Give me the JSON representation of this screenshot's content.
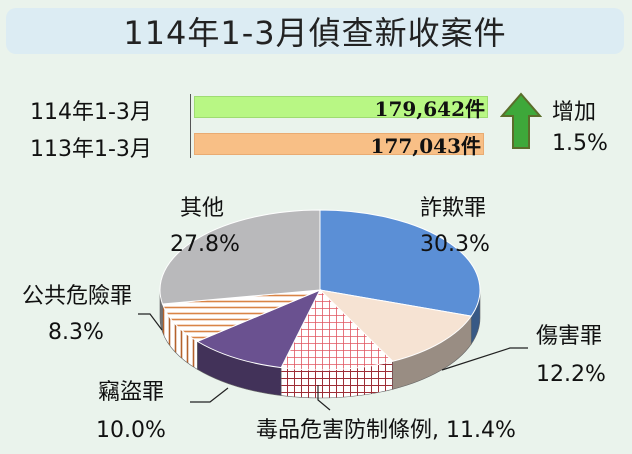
{
  "title": "114年1-3月偵查新收案件",
  "comparison": {
    "rows": [
      {
        "label": "114年1-3月",
        "value": 179642,
        "value_text": "179,642件",
        "color": "#b8f784"
      },
      {
        "label": "113年1-3月",
        "value": 177043,
        "value_text": "177,043件",
        "color": "#f8bf86"
      }
    ],
    "increase_label": "增加",
    "increase_value": "1.5%",
    "arrow_color": "#3ea83a"
  },
  "chart_data": {
    "type": "pie",
    "slices": [
      {
        "name": "詐欺罪",
        "value": 30.3,
        "label": "30.3%",
        "color": "#5b8fd6"
      },
      {
        "name": "傷害罪",
        "value": 12.2,
        "label": "12.2%",
        "color": "#f6e3d3"
      },
      {
        "name": "毒品危害防制條例",
        "value": 11.4,
        "label": "11.4%",
        "color": "#e8717a",
        "pattern": "grid"
      },
      {
        "name": "竊盜罪",
        "value": 10.0,
        "label": "10.0%",
        "color": "#6a5190"
      },
      {
        "name": "公共危險罪",
        "value": 8.3,
        "label": "8.3%",
        "color": "#d98446",
        "pattern": "stripes"
      },
      {
        "name": "其他",
        "value": 27.8,
        "label": "27.8%",
        "color": "#b9b9bb"
      }
    ],
    "start_angle_deg": -90,
    "direction": "clockwise",
    "style": "3d-tilted"
  }
}
